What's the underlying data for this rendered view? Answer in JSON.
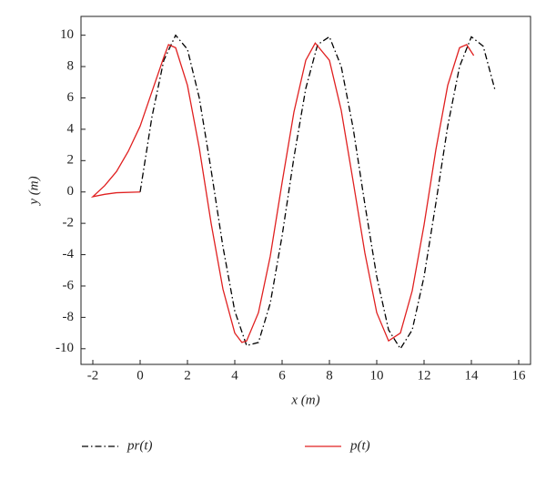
{
  "chart_data": {
    "type": "line",
    "x_label": "x (m)",
    "y_label": "y (m)",
    "xlim": [
      -2.5,
      16.5
    ],
    "ylim": [
      -11,
      11.2
    ],
    "xticks": [
      -2,
      0,
      2,
      4,
      6,
      8,
      10,
      12,
      14,
      16
    ],
    "yticks": [
      -10,
      -8,
      -6,
      -4,
      -2,
      0,
      2,
      4,
      6,
      8,
      10
    ],
    "grid": false,
    "legend": "bottom",
    "series": [
      {
        "name": "pr(t)",
        "color": "#000000",
        "dash": "dashdot",
        "x": [
          0,
          0.5,
          1,
          1.5,
          2,
          2.5,
          3,
          3.5,
          4,
          4.5,
          5,
          5.5,
          6,
          6.5,
          7,
          7.5,
          8,
          8.5,
          9,
          9.5,
          10,
          10.5,
          11,
          11.5,
          12,
          12.5,
          13,
          13.5,
          14,
          14.5,
          15
        ],
        "values": [
          0,
          4.8,
          8.4,
          10.0,
          9.1,
          6.0,
          1.4,
          -3.5,
          -7.6,
          -9.8,
          -9.6,
          -7.1,
          -2.8,
          2.2,
          6.6,
          9.4,
          9.9,
          8.0,
          4.1,
          -0.8,
          -5.4,
          -8.8,
          -10.0,
          -8.8,
          -5.4,
          -0.7,
          4.2,
          8.0,
          9.9,
          9.3,
          6.5
        ]
      },
      {
        "name": "p(t)",
        "color": "#e02020",
        "dash": "solid",
        "x": [
          0,
          -1,
          -1.5,
          -2,
          -1.5,
          -1,
          -0.5,
          0,
          0.5,
          1,
          1.2,
          1.5,
          2,
          2.5,
          3,
          3.5,
          4,
          4.3,
          4.5,
          5,
          5.5,
          6,
          6.5,
          7,
          7.4,
          8,
          8.5,
          9,
          9.5,
          10,
          10.5,
          11,
          11.5,
          12,
          12.5,
          13,
          13.5,
          13.8,
          14.1
        ],
        "values": [
          0,
          -0.05,
          -0.15,
          -0.3,
          0.4,
          1.3,
          2.6,
          4.2,
          6.4,
          8.6,
          9.4,
          9.2,
          6.8,
          2.8,
          -2.0,
          -6.2,
          -9.0,
          -9.6,
          -9.5,
          -7.7,
          -4.1,
          0.6,
          5.1,
          8.4,
          9.5,
          8.4,
          5.2,
          0.7,
          -3.9,
          -7.7,
          -9.5,
          -9.0,
          -6.3,
          -2.1,
          2.7,
          6.8,
          9.2,
          9.4,
          8.7
        ]
      }
    ]
  }
}
